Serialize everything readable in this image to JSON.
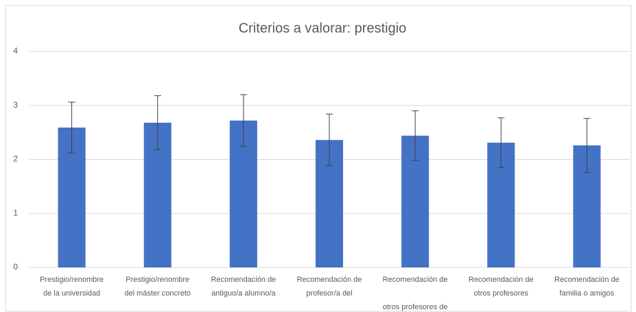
{
  "chart_data": {
    "type": "bar",
    "title": "Criterios a valorar: prestigio",
    "categories": [
      "Prestigio/renombre\nde la universidad",
      "Prestigio/renombre\ndel máster concreto",
      "Recomendación de\nantiguo/a alumno/a",
      "Recomendación de\nprofesor/a del",
      "Recomendación de\n\notros profesores de",
      "Recomendación de\notros profesores",
      "Recomendación de\nfamilia o amigos"
    ],
    "values": [
      2.59,
      2.68,
      2.72,
      2.36,
      2.44,
      2.31,
      2.26
    ],
    "errors": [
      0.47,
      0.5,
      0.48,
      0.48,
      0.46,
      0.46,
      0.5
    ],
    "color": "#4472c4",
    "ylim": [
      0,
      4
    ],
    "yticks": [
      0,
      1,
      2,
      3,
      4
    ],
    "grid": true
  }
}
